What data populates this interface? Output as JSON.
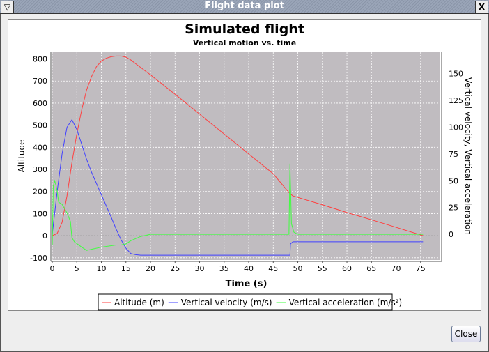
{
  "window": {
    "title": "Flight data plot",
    "close_label": "Close"
  },
  "chart_data": {
    "type": "line",
    "title": "Simulated flight",
    "subtitle": "Vertical motion vs. time",
    "xlabel": "Time (s)",
    "ylabel": "Altitude",
    "y2label": "Vertical velocity, Vertical acceleration",
    "xlim": [
      0,
      79
    ],
    "ylim": [
      -110,
      830
    ],
    "y2lim": [
      -24,
      170
    ],
    "xticks": [
      0,
      5,
      10,
      15,
      20,
      25,
      30,
      35,
      40,
      45,
      50,
      55,
      60,
      65,
      70,
      75
    ],
    "yticks": [
      -100,
      0,
      100,
      200,
      300,
      400,
      500,
      600,
      700,
      800
    ],
    "y2ticks": [
      0,
      25,
      50,
      75,
      100,
      125,
      150
    ],
    "grid": true,
    "legend": "bottom",
    "series": [
      {
        "name": "Altitude (m)",
        "axis": "left",
        "color": "#ff4040",
        "x": [
          0,
          1,
          2,
          3,
          4,
          5,
          6,
          7,
          8,
          9,
          10,
          11,
          12,
          13,
          14,
          15,
          16,
          17,
          20,
          25,
          30,
          35,
          40,
          45,
          48.4,
          49,
          55,
          60,
          65,
          70,
          75.5
        ],
        "y": [
          0,
          10,
          60,
          180,
          330,
          460,
          570,
          660,
          720,
          765,
          790,
          803,
          810,
          813,
          813,
          808,
          795,
          778,
          728,
          640,
          550,
          460,
          370,
          280,
          190,
          180,
          140,
          105,
          72,
          38,
          0
        ]
      },
      {
        "name": "Vertical velocity (m/s)",
        "axis": "right",
        "color": "#4040ff",
        "x": [
          0,
          1,
          2,
          3,
          4,
          5,
          6,
          7,
          8,
          10,
          12,
          13,
          14,
          15,
          16,
          17,
          18,
          20,
          30,
          40,
          48.4,
          48.5,
          49,
          75.5
        ],
        "y": [
          0,
          40,
          75,
          100,
          107,
          98,
          84,
          70,
          58,
          37,
          16,
          5,
          -5,
          -13,
          -18,
          -19,
          -19.5,
          -19.5,
          -19.5,
          -19.5,
          -19.5,
          -9,
          -7,
          -7
        ]
      },
      {
        "name": "Vertical acceleration (m/s²)",
        "axis": "right",
        "color": "#40ff40",
        "x": [
          0,
          0.2,
          0.5,
          0.8,
          1,
          1.3,
          2,
          3,
          3.7,
          4,
          4.5,
          6,
          7,
          8,
          10,
          13,
          14,
          15,
          16,
          18,
          20,
          48.2,
          48.4,
          48.7,
          49.2,
          50,
          75.5
        ],
        "y": [
          -10,
          45,
          50,
          45,
          40,
          30,
          28,
          20,
          12,
          -3,
          -7,
          -12,
          -15,
          -14,
          -12,
          -10,
          -10,
          -9,
          -6,
          -2,
          0,
          0,
          66,
          10,
          2,
          0,
          0
        ]
      }
    ]
  }
}
